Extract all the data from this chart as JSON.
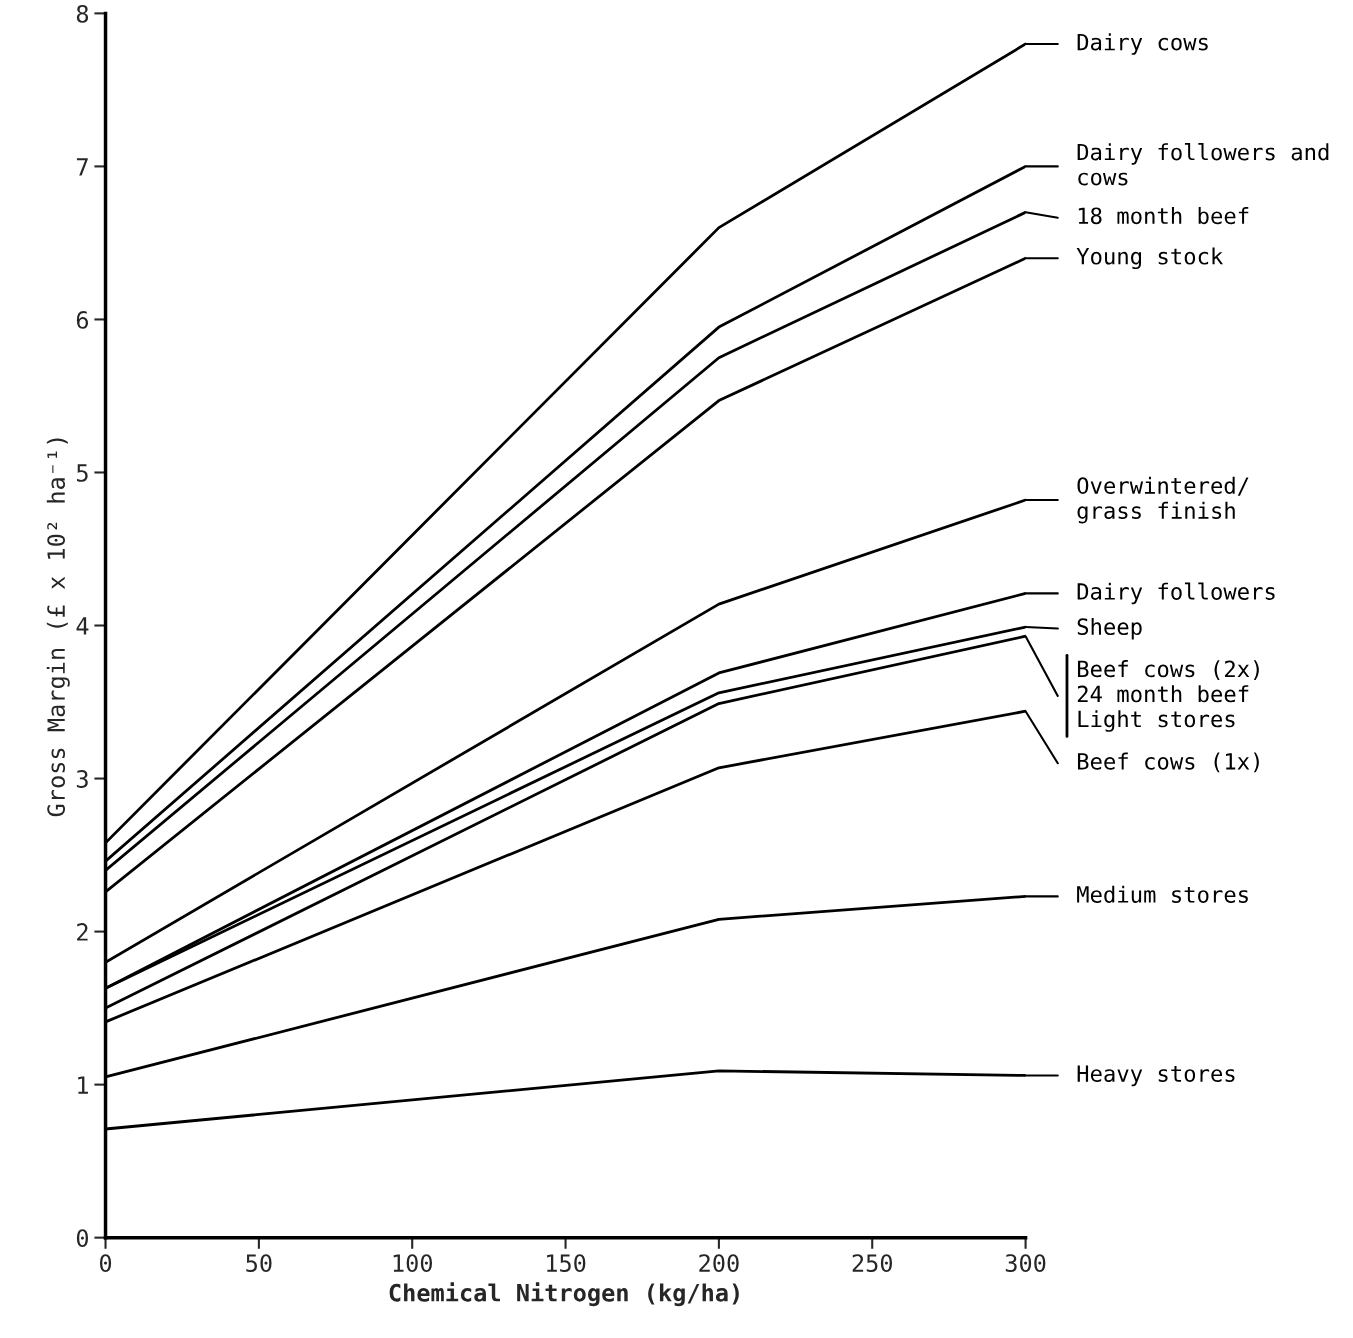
{
  "chart_data": {
    "type": "line",
    "xlabel": "Chemical Nitrogen (kg/ha)",
    "ylabel": "Gross Margin (£ x 10² ha⁻¹)",
    "x": [
      0,
      200,
      300
    ],
    "xlim": [
      0,
      300
    ],
    "ylim": [
      0,
      8
    ],
    "xticks": [
      0,
      50,
      100,
      150,
      200,
      250,
      300
    ],
    "yticks": [
      0,
      1,
      2,
      3,
      4,
      5,
      6,
      7,
      8
    ],
    "grid": false,
    "legend": "right",
    "line_style": "solid",
    "series": [
      {
        "name": "Dairy cows",
        "color": "#000000",
        "values": [
          2.58,
          6.6,
          7.8
        ]
      },
      {
        "name": "Dairy followers and\ncows",
        "color": "#000000",
        "values": [
          2.46,
          5.95,
          7.0
        ]
      },
      {
        "name": "18 month beef",
        "color": "#000000",
        "values": [
          2.4,
          5.75,
          6.7
        ]
      },
      {
        "name": "Young stock",
        "color": "#000000",
        "values": [
          2.26,
          5.47,
          6.4
        ]
      },
      {
        "name": "Overwintered/\ngrass finish",
        "color": "#000000",
        "values": [
          1.8,
          4.14,
          4.82
        ]
      },
      {
        "name": "Dairy followers",
        "color": "#000000",
        "values": [
          1.63,
          3.69,
          4.21
        ]
      },
      {
        "name": "Sheep",
        "color": "#000000",
        "values": [
          1.63,
          3.56,
          3.99
        ]
      },
      {
        "name": "Beef cows (2x)\n24 month beef\nLight stores",
        "color": "#000000",
        "values": [
          1.5,
          3.49,
          3.93
        ]
      },
      {
        "name": "Beef cows (1x)",
        "color": "#000000",
        "values": [
          1.41,
          3.07,
          3.44
        ]
      },
      {
        "name": "Medium stores",
        "color": "#000000",
        "values": [
          1.05,
          2.08,
          2.23
        ]
      },
      {
        "name": "Heavy stores",
        "color": "#000000",
        "values": [
          0.71,
          1.09,
          1.06
        ]
      }
    ]
  }
}
